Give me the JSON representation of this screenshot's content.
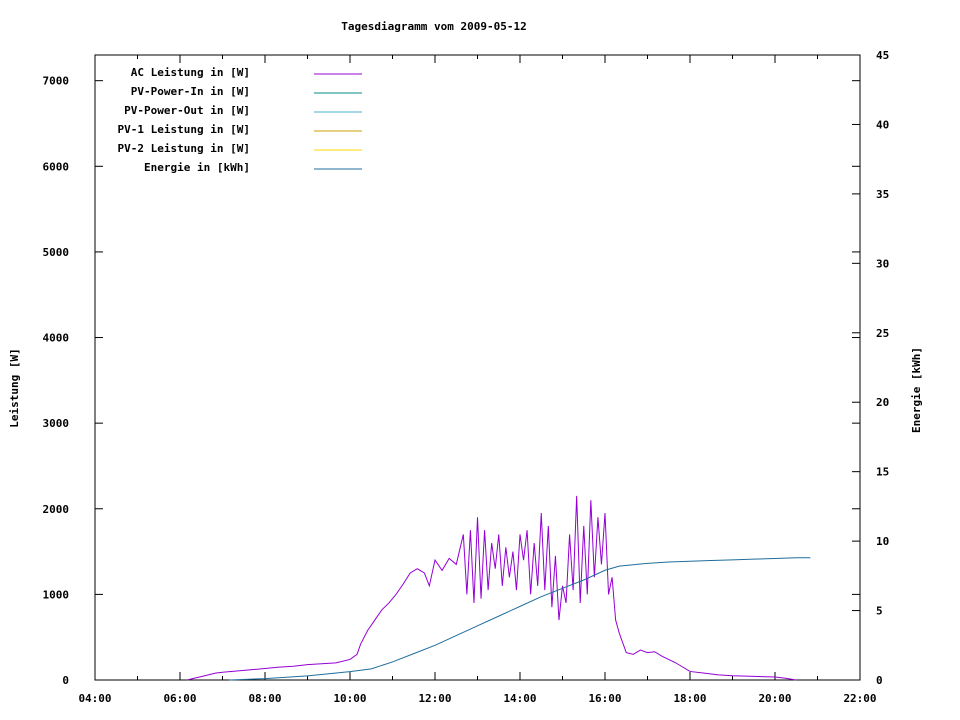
{
  "chart_data": {
    "type": "line",
    "title": "Tagesdiagramm vom 2009-05-12",
    "xlabel": "",
    "ylabel": "Leistung [W]",
    "y2label": "Energie [kWh]",
    "x_ticks": [
      "04:00",
      "06:00",
      "08:00",
      "10:00",
      "12:00",
      "14:00",
      "16:00",
      "18:00",
      "20:00",
      "22:00"
    ],
    "xlim": [
      "04:00",
      "22:00"
    ],
    "ylim": [
      0,
      7300
    ],
    "y_ticks": [
      0,
      1000,
      2000,
      3000,
      4000,
      5000,
      6000,
      7000
    ],
    "y2lim": [
      0,
      45
    ],
    "y2_ticks": [
      0,
      5,
      10,
      15,
      20,
      25,
      30,
      35,
      40,
      45
    ],
    "grid": false,
    "legend_position": "top-left",
    "series": [
      {
        "name": "AC Leistung in [W]",
        "axis": "left",
        "color": "#9400d3",
        "points": [
          [
            "06:10",
            0
          ],
          [
            "06:20",
            20
          ],
          [
            "06:30",
            40
          ],
          [
            "06:40",
            60
          ],
          [
            "06:50",
            80
          ],
          [
            "07:00",
            90
          ],
          [
            "07:20",
            105
          ],
          [
            "07:40",
            120
          ],
          [
            "08:00",
            135
          ],
          [
            "08:20",
            150
          ],
          [
            "08:40",
            160
          ],
          [
            "09:00",
            180
          ],
          [
            "09:20",
            190
          ],
          [
            "09:40",
            200
          ],
          [
            "10:00",
            240
          ],
          [
            "10:10",
            300
          ],
          [
            "10:15",
            420
          ],
          [
            "10:25",
            580
          ],
          [
            "10:35",
            700
          ],
          [
            "10:45",
            820
          ],
          [
            "10:55",
            900
          ],
          [
            "11:05",
            1000
          ],
          [
            "11:15",
            1120
          ],
          [
            "11:25",
            1250
          ],
          [
            "11:35",
            1300
          ],
          [
            "11:45",
            1250
          ],
          [
            "11:52",
            1100
          ],
          [
            "12:00",
            1400
          ],
          [
            "12:10",
            1280
          ],
          [
            "12:20",
            1420
          ],
          [
            "12:30",
            1350
          ],
          [
            "12:40",
            1700
          ],
          [
            "12:45",
            1000
          ],
          [
            "12:50",
            1750
          ],
          [
            "12:55",
            900
          ],
          [
            "13:00",
            1900
          ],
          [
            "13:05",
            950
          ],
          [
            "13:10",
            1750
          ],
          [
            "13:15",
            1050
          ],
          [
            "13:20",
            1600
          ],
          [
            "13:25",
            1300
          ],
          [
            "13:30",
            1700
          ],
          [
            "13:35",
            1100
          ],
          [
            "13:40",
            1550
          ],
          [
            "13:45",
            1200
          ],
          [
            "13:50",
            1500
          ],
          [
            "13:55",
            1050
          ],
          [
            "14:00",
            1700
          ],
          [
            "14:05",
            1400
          ],
          [
            "14:10",
            1750
          ],
          [
            "14:15",
            1000
          ],
          [
            "14:20",
            1600
          ],
          [
            "14:25",
            1100
          ],
          [
            "14:30",
            1950
          ],
          [
            "14:35",
            1050
          ],
          [
            "14:40",
            1800
          ],
          [
            "14:45",
            850
          ],
          [
            "14:50",
            1450
          ],
          [
            "14:55",
            700
          ],
          [
            "15:00",
            1100
          ],
          [
            "15:05",
            900
          ],
          [
            "15:10",
            1700
          ],
          [
            "15:15",
            1050
          ],
          [
            "15:20",
            2150
          ],
          [
            "15:25",
            900
          ],
          [
            "15:30",
            1800
          ],
          [
            "15:35",
            1000
          ],
          [
            "15:40",
            2100
          ],
          [
            "15:45",
            1200
          ],
          [
            "15:50",
            1900
          ],
          [
            "15:55",
            1350
          ],
          [
            "16:00",
            1950
          ],
          [
            "16:05",
            1000
          ],
          [
            "16:10",
            1200
          ],
          [
            "16:15",
            700
          ],
          [
            "16:20",
            550
          ],
          [
            "16:30",
            320
          ],
          [
            "16:40",
            300
          ],
          [
            "16:50",
            350
          ],
          [
            "17:00",
            320
          ],
          [
            "17:10",
            330
          ],
          [
            "17:20",
            280
          ],
          [
            "17:40",
            200
          ],
          [
            "18:00",
            100
          ],
          [
            "18:20",
            80
          ],
          [
            "18:40",
            60
          ],
          [
            "19:00",
            50
          ],
          [
            "19:20",
            45
          ],
          [
            "19:40",
            40
          ],
          [
            "20:00",
            35
          ],
          [
            "20:15",
            20
          ],
          [
            "20:30",
            0
          ]
        ]
      },
      {
        "name": "PV-Power-In in [W]",
        "axis": "left",
        "color": "#008b8b",
        "points": []
      },
      {
        "name": "PV-Power-Out in [W]",
        "axis": "left",
        "color": "#4ab0c8",
        "points": []
      },
      {
        "name": "PV-1 Leistung in [W]",
        "axis": "left",
        "color": "#c8a000",
        "points": []
      },
      {
        "name": "PV-2 Leistung in [W]",
        "axis": "left",
        "color": "#ffd700",
        "points": []
      },
      {
        "name": "Energie in [kWh]",
        "axis": "right",
        "color": "#1f6e9e",
        "points": [
          [
            "07:10",
            0
          ],
          [
            "08:00",
            0.1
          ],
          [
            "09:00",
            0.3
          ],
          [
            "10:00",
            0.6
          ],
          [
            "10:30",
            0.8
          ],
          [
            "11:00",
            1.3
          ],
          [
            "11:30",
            1.9
          ],
          [
            "12:00",
            2.5
          ],
          [
            "12:30",
            3.2
          ],
          [
            "13:00",
            3.9
          ],
          [
            "13:30",
            4.6
          ],
          [
            "14:00",
            5.3
          ],
          [
            "14:30",
            6.0
          ],
          [
            "15:00",
            6.6
          ],
          [
            "15:30",
            7.2
          ],
          [
            "16:00",
            7.9
          ],
          [
            "16:20",
            8.2
          ],
          [
            "16:40",
            8.3
          ],
          [
            "17:00",
            8.4
          ],
          [
            "17:30",
            8.5
          ],
          [
            "18:00",
            8.55
          ],
          [
            "18:30",
            8.6
          ],
          [
            "19:00",
            8.65
          ],
          [
            "19:30",
            8.7
          ],
          [
            "20:00",
            8.75
          ],
          [
            "20:30",
            8.8
          ],
          [
            "20:50",
            8.8
          ]
        ]
      }
    ]
  }
}
